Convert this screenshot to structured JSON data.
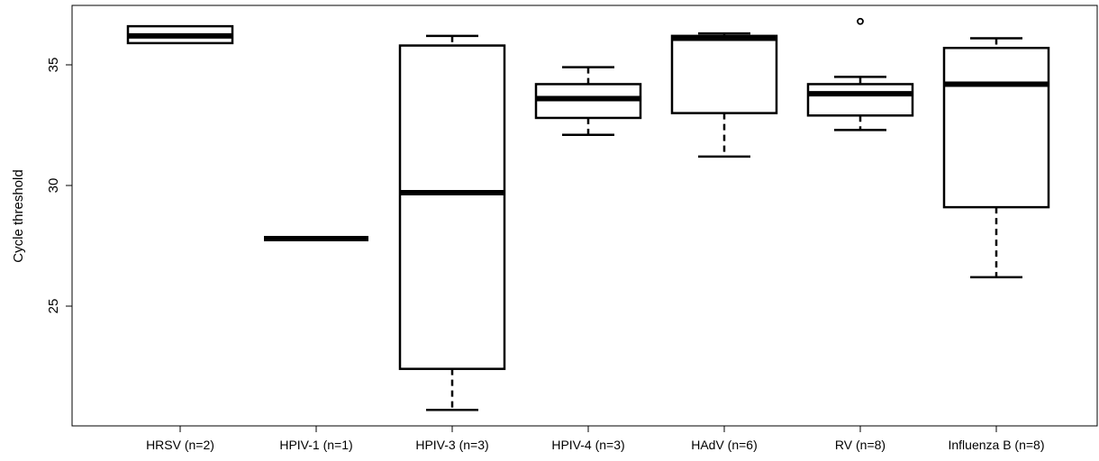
{
  "chart_data": {
    "type": "box",
    "title": "",
    "xlabel": "",
    "ylabel": "Cycle threshold",
    "ylim": [
      19.8,
      37.2
    ],
    "yticks": [
      25,
      30,
      35
    ],
    "grid": false,
    "categories": [
      "HRSV (n=2)",
      "HPIV-1 (n=1)",
      "HPIV-3 (n=3)",
      "HPIV-4 (n=3)",
      "HAdV (n=6)",
      "RV (n=8)",
      "Influenza B (n=8)"
    ],
    "boxes": [
      {
        "label": "HRSV (n=2)",
        "whisker_low": 35.9,
        "q1": 35.9,
        "median": 36.2,
        "q3": 36.6,
        "whisker_high": 36.6,
        "outliers": []
      },
      {
        "label": "HPIV-1 (n=1)",
        "whisker_low": 27.8,
        "q1": 27.8,
        "median": 27.8,
        "q3": 27.8,
        "whisker_high": 27.8,
        "outliers": []
      },
      {
        "label": "HPIV-3 (n=3)",
        "whisker_low": 20.7,
        "q1": 22.4,
        "median": 29.7,
        "q3": 35.8,
        "whisker_high": 36.2,
        "outliers": []
      },
      {
        "label": "HPIV-4 (n=3)",
        "whisker_low": 32.1,
        "q1": 32.8,
        "median": 33.6,
        "q3": 34.2,
        "whisker_high": 34.9,
        "outliers": []
      },
      {
        "label": "HAdV (n=6)",
        "whisker_low": 31.2,
        "q1": 33.0,
        "median": 36.1,
        "q3": 36.2,
        "whisker_high": 36.3,
        "outliers": []
      },
      {
        "label": "RV (n=8)",
        "whisker_low": 32.3,
        "q1": 32.9,
        "median": 33.8,
        "q3": 34.2,
        "whisker_high": 34.5,
        "outliers": [
          36.8
        ]
      },
      {
        "label": "Influenza B (n=8)",
        "whisker_low": 26.2,
        "q1": 29.1,
        "median": 34.2,
        "q3": 35.7,
        "whisker_high": 36.1,
        "outliers": []
      }
    ]
  }
}
